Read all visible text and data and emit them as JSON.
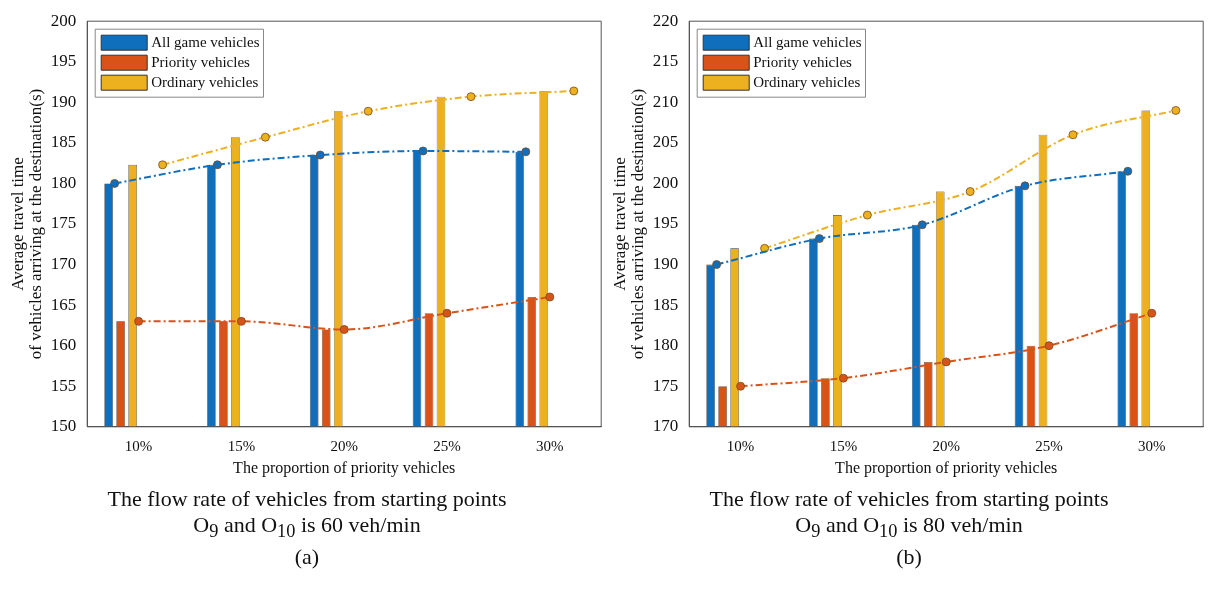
{
  "chart_data": [
    {
      "type": "bar",
      "title": "The flow rate of vehicles from starting points\nO$_{9}$ and O$_{10}$ is 60 veh/min",
      "subtitle": "(a)",
      "xlabel": "The proportion of priority vehicles",
      "ylabel": "Average travel time\nof vehicles arriving at the destination(s)",
      "categories": [
        "10%",
        "15%",
        "20%",
        "25%",
        "30%"
      ],
      "ylim": [
        150,
        200
      ],
      "yticks": [
        150,
        155,
        160,
        165,
        170,
        175,
        180,
        185,
        190,
        195,
        200
      ],
      "grid": false,
      "legend": "top left",
      "series": [
        {
          "name": "All game vehicles",
          "color": "#0f6fbd",
          "values": [
            180,
            182.3,
            183.5,
            184,
            183.9
          ]
        },
        {
          "name": "Priority vehicles",
          "color": "#d95319",
          "values": [
            163,
            163,
            162,
            164,
            166
          ]
        },
        {
          "name": "Ordinary vehicles",
          "color": "#edb120",
          "values": [
            182.3,
            185.7,
            188.9,
            190.7,
            191.4
          ]
        },
        {
          "type": "line",
          "color": "#0f6fbd",
          "marker": "circle",
          "line_style": "dashed",
          "values": [
            180,
            182.3,
            183.5,
            184,
            183.9
          ]
        },
        {
          "type": "line",
          "color": "#d95319",
          "marker": "circle",
          "line_style": "dashed",
          "values": [
            163,
            163,
            162,
            164,
            166
          ]
        },
        {
          "type": "line",
          "color": "#edb120",
          "marker": "circle",
          "line_style": "dashed",
          "values": [
            182.3,
            185.7,
            188.9,
            190.7,
            191.4
          ]
        }
      ]
    },
    {
      "type": "bar",
      "title": "The flow rate of vehicles from starting points\nO$_{9}$ and O$_{10}$ is 80 veh/min",
      "subtitle": "(b)",
      "xlabel": "The proportion of priority vehicles",
      "ylabel": "Average travel time\nof vehicles arriving at the destination(s)",
      "categories": [
        "10%",
        "15%",
        "20%",
        "25%",
        "30%"
      ],
      "ylim": [
        170,
        220
      ],
      "yticks": [
        170,
        175,
        180,
        185,
        190,
        195,
        200,
        205,
        210,
        215,
        220
      ],
      "grid": false,
      "legend": "top left",
      "series": [
        {
          "name": "All game vehicles",
          "color": "#0f6fbd",
          "values": [
            190,
            193.2,
            194.9,
            199.7,
            201.5
          ]
        },
        {
          "name": "Priority vehicles",
          "color": "#d95319",
          "values": [
            175,
            176,
            178,
            180,
            184
          ]
        },
        {
          "name": "Ordinary vehicles",
          "color": "#edb120",
          "values": [
            192,
            196.1,
            199,
            206,
            209
          ]
        },
        {
          "type": "line",
          "color": "#0f6fbd",
          "marker": "circle",
          "line_style": "dashed",
          "values": [
            190,
            193.2,
            194.9,
            199.7,
            201.5
          ]
        },
        {
          "type": "line",
          "color": "#d95319",
          "marker": "circle",
          "line_style": "dashed",
          "values": [
            175,
            176,
            178,
            180,
            184
          ]
        },
        {
          "type": "line",
          "color": "#edb120",
          "marker": "circle",
          "line_style": "dashed",
          "values": [
            192,
            196.1,
            199,
            206,
            209
          ]
        }
      ]
    }
  ]
}
